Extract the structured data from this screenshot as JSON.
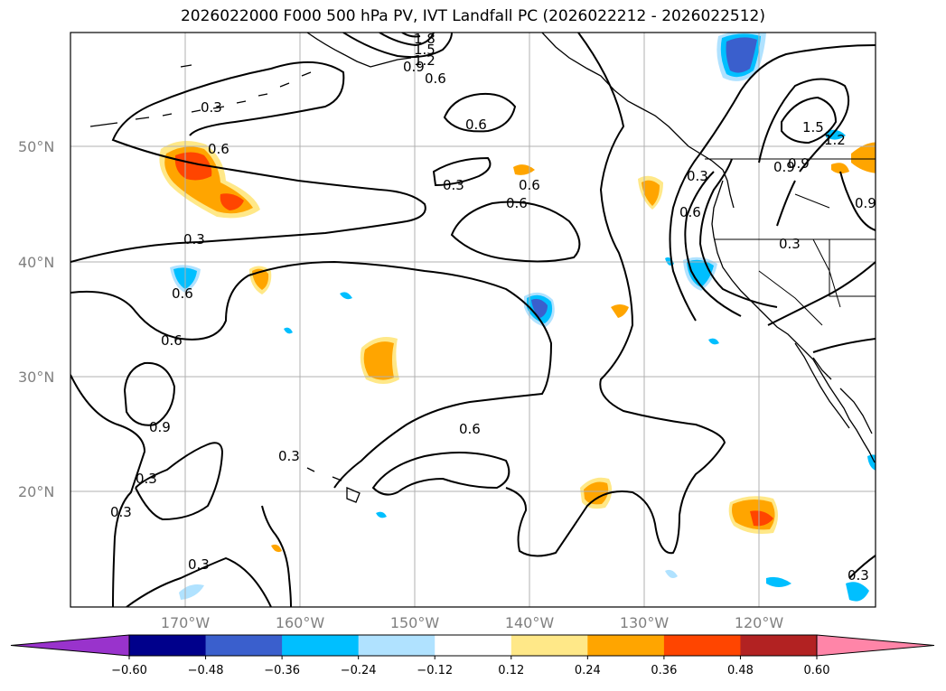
{
  "title": "2026022000 F000 500 hPa PV, IVT Landfall PC (2026022212 - 2026022512)",
  "map": {
    "region": "North Pacific",
    "lat_labels": [
      "50°N",
      "40°N",
      "30°N",
      "20°N"
    ],
    "lon_labels": [
      "170°W",
      "160°W",
      "150°W",
      "140°W",
      "130°W",
      "120°W"
    ],
    "contour_labels": [
      "0.6",
      "0.3",
      "0.6",
      "0.6",
      "0.6",
      "0.3",
      "0.6",
      "0.9",
      "0.3",
      "0.3",
      "0.3",
      "0.6",
      "0.3",
      "0.3",
      "0.9",
      "0.6",
      "1.5",
      "0.9",
      "1.2",
      "0.3",
      "0.6",
      "0.9",
      "0.3",
      "0.3",
      "1.8",
      "1.5",
      "1.2",
      "0.9",
      "0.6"
    ]
  },
  "colorbar": {
    "ticks": [
      "−0.60",
      "−0.48",
      "−0.36",
      "−0.24",
      "−0.12",
      "0.12",
      "0.24",
      "0.36",
      "0.48",
      "0.60"
    ],
    "colors": [
      "#9933cc",
      "#00008b",
      "#3a5fcd",
      "#00bfff",
      "#b0e2ff",
      "#ffffff",
      "#ffe888",
      "#ffa500",
      "#ff4500",
      "#b22222",
      "#ff85a8"
    ]
  },
  "colors": {
    "neg_light": "#b0e2ff",
    "neg_mid": "#00bfff",
    "neg_dark": "#3a5fcd",
    "pos_light": "#ffe888",
    "pos_mid": "#ffa500",
    "pos_dark": "#ff4500",
    "grid": "#b0b0b0"
  }
}
